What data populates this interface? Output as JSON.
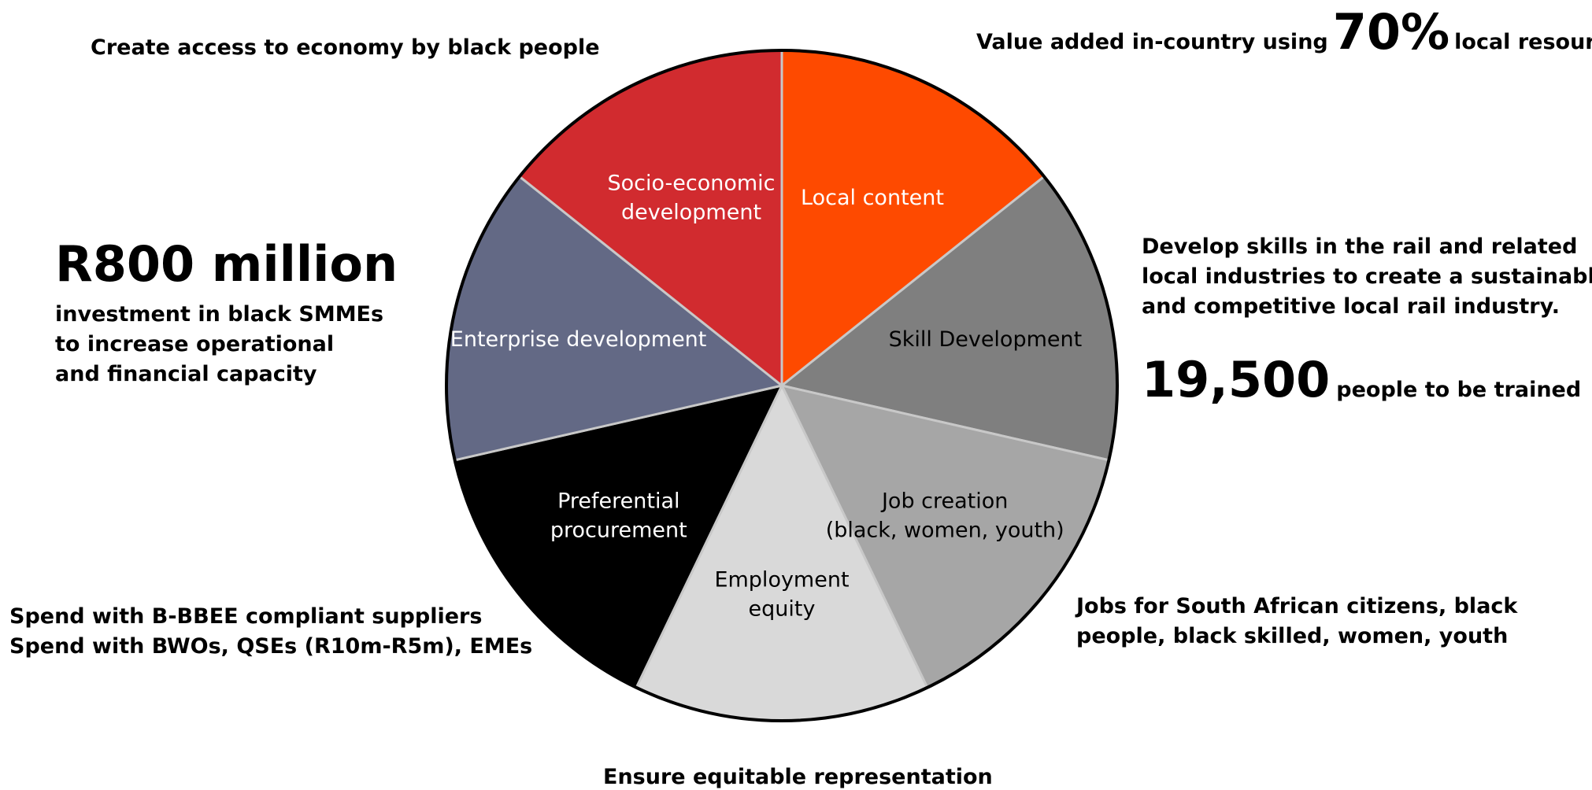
{
  "slices": [
    {
      "label_lines": [
        "Local content"
      ],
      "color": "#fe4a00",
      "text_color": "#ffffff"
    },
    {
      "label_lines": [
        "Skill Development"
      ],
      "color": "#7f7f7f",
      "text_color": "#000000"
    },
    {
      "label_lines": [
        "Job creation",
        "(black, women, youth)"
      ],
      "color": "#a6a6a6",
      "text_color": "#000000"
    },
    {
      "label_lines": [
        "Employment",
        "equity"
      ],
      "color": "#d9d9d9",
      "text_color": "#000000"
    },
    {
      "label_lines": [
        "Preferential",
        "procurement"
      ],
      "color": "#000000",
      "text_color": "#ffffff"
    },
    {
      "label_lines": [
        "Enterprise development"
      ],
      "color": "#636985",
      "text_color": "#ffffff"
    },
    {
      "label_lines": [
        "Socio-economic",
        "development"
      ],
      "color": "#d12b2f",
      "text_color": "#ffffff"
    }
  ],
  "annotations": {
    "top_left": "Create access to economy by black people",
    "top_right_pre": "Value added in-country using",
    "top_right_figure": "70%",
    "top_right_post": "local resources",
    "left_figure": "R800 million",
    "left_lines": [
      "investment in black SMMEs",
      "to increase operational",
      "and financial capacity"
    ],
    "right_lines": [
      "Develop skills in the rail and related",
      "local industries to create a sustainable",
      "and competitive local rail industry."
    ],
    "right_figure": "19,500",
    "right_figure_caption": "people to be trained",
    "right_bottom_lines": [
      "Jobs for South African citizens, black",
      "people, black skilled, women, youth"
    ],
    "left_bottom_lines": [
      "Spend with B-BBEE compliant suppliers",
      "Spend with BWOs, QSEs (R10m-R5m), EMEs"
    ],
    "bottom": "Ensure equitable representation"
  }
}
